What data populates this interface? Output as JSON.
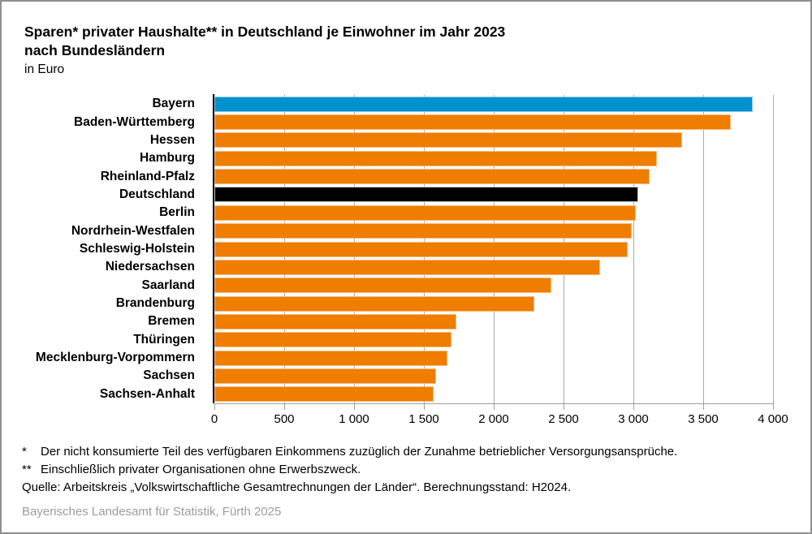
{
  "title": {
    "line1": "Sparen* privater Haushalte** in Deutschland je Einwohner im Jahr 2023",
    "line2": "nach Bundesländern",
    "line3": "in Euro"
  },
  "chart_data": {
    "type": "bar",
    "orientation": "horizontal",
    "title": "Sparen privater Haushalte in Deutschland je Einwohner im Jahr 2023 nach Bundesländern",
    "unit": "Euro",
    "xlim": [
      0,
      4000
    ],
    "x_ticks": [
      0,
      500,
      1000,
      1500,
      2000,
      2500,
      3000,
      3500,
      4000
    ],
    "x_tick_labels": [
      "0",
      "500",
      "1 000",
      "1 500",
      "2 000",
      "2 500",
      "3 000",
      "3 500",
      "4 000"
    ],
    "grid": true,
    "categories": [
      "Bayern",
      "Baden-Württemberg",
      "Hessen",
      "Hamburg",
      "Rheinland-Pfalz",
      "Deutschland",
      "Berlin",
      "Nordrhein-Westfalen",
      "Schleswig-Holstein",
      "Niedersachsen",
      "Saarland",
      "Brandenburg",
      "Bremen",
      "Thüringen",
      "Mecklenburg-Vorpommern",
      "Sachsen",
      "Sachsen-Anhalt"
    ],
    "values": [
      3855,
      3695,
      3350,
      3170,
      3115,
      3035,
      3020,
      2990,
      2960,
      2760,
      2410,
      2290,
      1730,
      1695,
      1670,
      1585,
      1570
    ],
    "bar_colors": [
      "blue",
      "orange",
      "orange",
      "orange",
      "orange",
      "black",
      "orange",
      "orange",
      "orange",
      "orange",
      "orange",
      "orange",
      "orange",
      "orange",
      "orange",
      "orange",
      "orange"
    ],
    "highlights": {
      "blue": "Bayern",
      "black": "Deutschland"
    }
  },
  "colors": {
    "blue": "#0092cf",
    "orange": "#ef7d00",
    "black": "#000000",
    "blue_border": "#8cc6e8",
    "orange_border": "#f6bb7d",
    "black_border": "#c2c2c2",
    "grid": "#ababab",
    "axis_gray": "#9e9e9e",
    "imprint_gray": "#9c9c9c"
  },
  "footnotes": [
    {
      "marker": "*",
      "text": "Der nicht konsumierte Teil des verfügbaren Einkommens zuzüglich der Zunahme betrieblicher Versorgungsansprüche."
    },
    {
      "marker": "**",
      "text": "Einschließlich privater Organisationen ohne Erwerbszweck."
    }
  ],
  "source": "Quelle: Arbeitskreis „Volkswirtschaftliche Gesamtrechnungen der Länder“. Berechnungsstand: H2024.",
  "imprint": "Bayerisches Landesamt für Statistik, Fürth 2025"
}
